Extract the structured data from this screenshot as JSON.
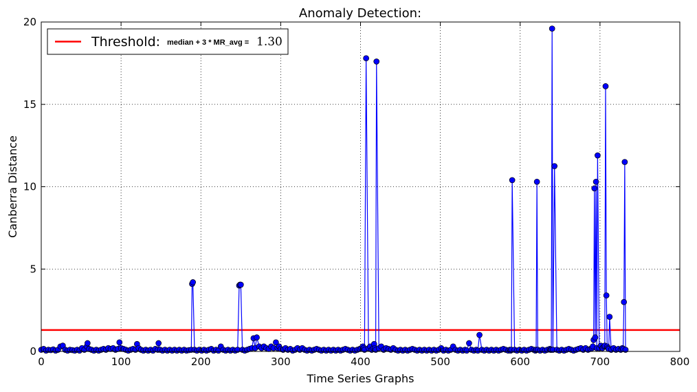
{
  "chart_data": {
    "type": "line",
    "title": "Anomaly Detection:",
    "xlabel": "Time Series Graphs",
    "ylabel": "Canberra Distance",
    "xlim": [
      0,
      800
    ],
    "ylim": [
      0,
      20
    ],
    "xticks": [
      0,
      100,
      200,
      300,
      400,
      500,
      600,
      700,
      800
    ],
    "yticks": [
      0,
      5,
      10,
      15,
      20
    ],
    "grid": true,
    "legend_position": "top-left",
    "colors": {
      "series": "#0000ff",
      "marker": "#0000ff",
      "threshold": "#ff0000"
    },
    "threshold": {
      "value": 1.3,
      "label_main": "Threshold:",
      "label_formula": "median + 3 * MR_avg =",
      "label_value": "1.30"
    },
    "series": [
      {
        "x": [
          0,
          3,
          6,
          9,
          12,
          15,
          18,
          21,
          24,
          27,
          30,
          33,
          36,
          39,
          42,
          45,
          48,
          51,
          54,
          57,
          58,
          60,
          63,
          66,
          69,
          72,
          75,
          78,
          81,
          84,
          87,
          90,
          93,
          96,
          98,
          100,
          103,
          106,
          109,
          112,
          115,
          118,
          120,
          122,
          125,
          128,
          131,
          134,
          137,
          140,
          143,
          146,
          147,
          149,
          152,
          155,
          158,
          161,
          164,
          167,
          170,
          173,
          176,
          179,
          182,
          185,
          188,
          189,
          190,
          192,
          195,
          198,
          201,
          204,
          207,
          210,
          213,
          216,
          219,
          222,
          225,
          228,
          231,
          234,
          237,
          240,
          243,
          246,
          248,
          249,
          250,
          252,
          255,
          258,
          261,
          264,
          266,
          268,
          270,
          273,
          276,
          279,
          282,
          285,
          288,
          291,
          294,
          296,
          298,
          300,
          303,
          306,
          309,
          312,
          315,
          318,
          321,
          324,
          327,
          330,
          333,
          336,
          339,
          342,
          345,
          348,
          351,
          354,
          357,
          360,
          363,
          366,
          369,
          372,
          375,
          378,
          381,
          384,
          387,
          390,
          393,
          396,
          399,
          401,
          403,
          404,
          405,
          407,
          410,
          412,
          414,
          416,
          417,
          418,
          419,
          420,
          423,
          426,
          429,
          432,
          435,
          438,
          441,
          444,
          447,
          450,
          453,
          456,
          459,
          462,
          465,
          468,
          471,
          474,
          477,
          480,
          483,
          486,
          489,
          492,
          495,
          498,
          501,
          504,
          507,
          510,
          513,
          516,
          519,
          522,
          525,
          528,
          531,
          533,
          536,
          539,
          542,
          545,
          547,
          549,
          552,
          555,
          558,
          561,
          564,
          567,
          570,
          573,
          576,
          579,
          582,
          585,
          587,
          588,
          589,
          590,
          593,
          596,
          599,
          602,
          605,
          608,
          611,
          614,
          617,
          619,
          620,
          621,
          622,
          625,
          628,
          631,
          634,
          637,
          638,
          639,
          640,
          641,
          643,
          646,
          649,
          652,
          655,
          658,
          661,
          664,
          667,
          670,
          673,
          676,
          679,
          682,
          685,
          688,
          690,
          691,
          692,
          693,
          694,
          695,
          696,
          697,
          699,
          701,
          703,
          705,
          706,
          707,
          708,
          709,
          710,
          711,
          712,
          714,
          717,
          720,
          723,
          726,
          728,
          729,
          730,
          731,
          732
        ],
        "values": [
          0.1,
          0.15,
          0.05,
          0.1,
          0.08,
          0.12,
          0.05,
          0.1,
          0.3,
          0.35,
          0.1,
          0.05,
          0.1,
          0.08,
          0.05,
          0.1,
          0.05,
          0.2,
          0.1,
          0.3,
          0.5,
          0.15,
          0.1,
          0.05,
          0.1,
          0.05,
          0.1,
          0.15,
          0.1,
          0.2,
          0.15,
          0.2,
          0.1,
          0.15,
          0.55,
          0.2,
          0.15,
          0.1,
          0.05,
          0.1,
          0.15,
          0.1,
          0.45,
          0.2,
          0.1,
          0.05,
          0.1,
          0.05,
          0.1,
          0.05,
          0.15,
          0.1,
          0.5,
          0.1,
          0.05,
          0.1,
          0.05,
          0.1,
          0.05,
          0.1,
          0.05,
          0.1,
          0.05,
          0.1,
          0.05,
          0.08,
          0.1,
          4.1,
          4.2,
          0.1,
          0.05,
          0.1,
          0.05,
          0.1,
          0.05,
          0.1,
          0.15,
          0.05,
          0.1,
          0.05,
          0.3,
          0.1,
          0.05,
          0.1,
          0.05,
          0.1,
          0.05,
          0.1,
          4.0,
          4.05,
          4.05,
          0.1,
          0.05,
          0.1,
          0.15,
          0.2,
          0.8,
          0.2,
          0.85,
          0.3,
          0.2,
          0.3,
          0.2,
          0.15,
          0.3,
          0.2,
          0.55,
          0.2,
          0.3,
          0.15,
          0.1,
          0.2,
          0.1,
          0.15,
          0.05,
          0.1,
          0.2,
          0.1,
          0.2,
          0.1,
          0.05,
          0.1,
          0.05,
          0.1,
          0.15,
          0.1,
          0.05,
          0.1,
          0.05,
          0.1,
          0.05,
          0.1,
          0.05,
          0.1,
          0.05,
          0.1,
          0.15,
          0.1,
          0.05,
          0.1,
          0.05,
          0.1,
          0.15,
          0.2,
          0.3,
          0.2,
          0.1,
          17.8,
          0.2,
          0.3,
          0.1,
          0.2,
          0.45,
          0.2,
          0.1,
          17.6,
          0.2,
          0.3,
          0.1,
          0.2,
          0.15,
          0.1,
          0.2,
          0.1,
          0.05,
          0.1,
          0.05,
          0.1,
          0.05,
          0.1,
          0.15,
          0.1,
          0.05,
          0.1,
          0.05,
          0.1,
          0.05,
          0.1,
          0.05,
          0.1,
          0.05,
          0.1,
          0.2,
          0.05,
          0.1,
          0.05,
          0.1,
          0.3,
          0.1,
          0.05,
          0.1,
          0.05,
          0.1,
          0.05,
          0.5,
          0.1,
          0.05,
          0.1,
          0.05,
          1.0,
          0.1,
          0.05,
          0.1,
          0.05,
          0.1,
          0.05,
          0.1,
          0.05,
          0.1,
          0.15,
          0.1,
          0.05,
          0.1,
          0.05,
          0.1,
          10.4,
          0.1,
          0.05,
          0.1,
          0.05,
          0.1,
          0.05,
          0.1,
          0.15,
          0.1,
          0.05,
          0.1,
          10.3,
          0.1,
          0.05,
          0.1,
          0.05,
          0.1,
          0.15,
          0.1,
          0.1,
          19.6,
          0.1,
          11.25,
          0.1,
          0.05,
          0.1,
          0.05,
          0.1,
          0.15,
          0.1,
          0.05,
          0.1,
          0.15,
          0.2,
          0.1,
          0.2,
          0.1,
          0.15,
          0.2,
          0.3,
          0.7,
          9.9,
          0.85,
          10.3,
          0.2,
          11.9,
          0.2,
          0.35,
          0.2,
          0.3,
          0.35,
          16.1,
          3.4,
          0.3,
          0.2,
          0.15,
          2.1,
          0.1,
          0.2,
          0.1,
          0.15,
          0.1,
          0.2,
          0.15,
          3.0,
          11.5,
          0.1
        ]
      }
    ]
  }
}
